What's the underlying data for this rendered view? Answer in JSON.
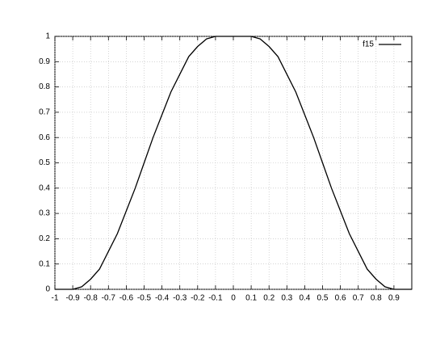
{
  "chart_data": {
    "type": "line",
    "x": [
      -1,
      -0.95,
      -0.9,
      -0.85,
      -0.8,
      -0.75,
      -0.7,
      -0.65,
      -0.6,
      -0.55,
      -0.5,
      -0.45,
      -0.4,
      -0.35,
      -0.3,
      -0.25,
      -0.2,
      -0.15,
      -0.1,
      -0.05,
      0,
      0.05,
      0.1,
      0.15,
      0.2,
      0.25,
      0.3,
      0.35,
      0.4,
      0.45,
      0.5,
      0.55,
      0.6,
      0.65,
      0.7,
      0.75,
      0.8,
      0.85,
      0.9,
      0.95,
      1
    ],
    "series": [
      {
        "name": "f15",
        "color": "#000000",
        "values": [
          0,
          0,
          0,
          0.01,
          0.04,
          0.08,
          0.15,
          0.22,
          0.31,
          0.4,
          0.5,
          0.6,
          0.69,
          0.78,
          0.85,
          0.92,
          0.96,
          0.99,
          1,
          1,
          1,
          1,
          1,
          0.99,
          0.96,
          0.92,
          0.85,
          0.78,
          0.69,
          0.6,
          0.5,
          0.4,
          0.31,
          0.22,
          0.15,
          0.08,
          0.04,
          0.01,
          0,
          0,
          0
        ]
      }
    ],
    "xlim": [
      -1,
      1
    ],
    "xticks": [
      -1,
      -0.9,
      -0.8,
      -0.7,
      -0.6,
      -0.5,
      -0.4,
      -0.3,
      -0.2,
      -0.1,
      0,
      0.1,
      0.2,
      0.3,
      0.4,
      0.5,
      0.6,
      0.7,
      0.8,
      0.9
    ],
    "ylim": [
      0,
      1
    ],
    "yticks": [
      0,
      0.1,
      0.2,
      0.3,
      0.4,
      0.5,
      0.6,
      0.7,
      0.8,
      0.9,
      1
    ],
    "grid": true,
    "legend": "top-right"
  }
}
